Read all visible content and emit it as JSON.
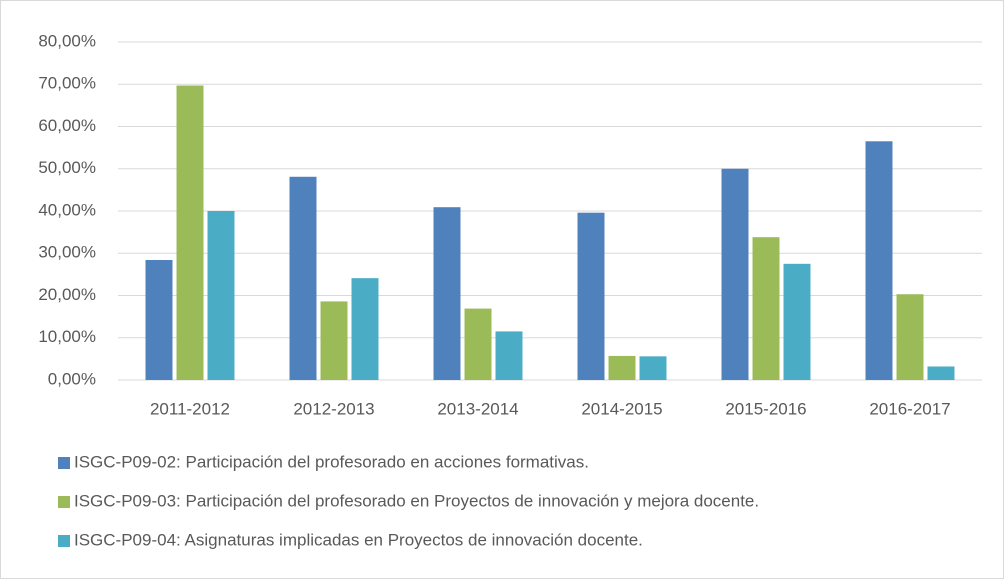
{
  "chart_data": {
    "type": "bar",
    "categories": [
      "2011-2012",
      "2012-2013",
      "2013-2014",
      "2014-2015",
      "2015-2016",
      "2016-2017"
    ],
    "series": [
      {
        "name": "ISGC-P09-02: Participación del profesorado en acciones formativas.",
        "color": "#4f81bd",
        "values": [
          28.4,
          48.1,
          40.9,
          39.6,
          50.0,
          56.5
        ]
      },
      {
        "name": "ISGC-P09-03: Participación del profesorado en Proyectos de innovación y mejora docente.",
        "color": "#9bbb59",
        "values": [
          69.7,
          18.6,
          16.9,
          5.7,
          33.8,
          20.3
        ]
      },
      {
        "name": "ISGC-P09-04: Asignaturas implicadas en Proyectos de innovación docente.",
        "color": "#4bacc6",
        "values": [
          40.0,
          24.1,
          11.5,
          5.6,
          27.5,
          3.2
        ]
      }
    ],
    "ylim": [
      0,
      80
    ],
    "yticks": [
      {
        "value": 0,
        "label": "0,00%"
      },
      {
        "value": 10,
        "label": "10,00%"
      },
      {
        "value": 20,
        "label": "20,00%"
      },
      {
        "value": 30,
        "label": "30,00%"
      },
      {
        "value": 40,
        "label": "40,00%"
      },
      {
        "value": 50,
        "label": "50,00%"
      },
      {
        "value": 60,
        "label": "60,00%"
      },
      {
        "value": 70,
        "label": "70,00%"
      },
      {
        "value": 80,
        "label": "80,00%"
      }
    ],
    "grid": true,
    "legend": "bottom"
  }
}
